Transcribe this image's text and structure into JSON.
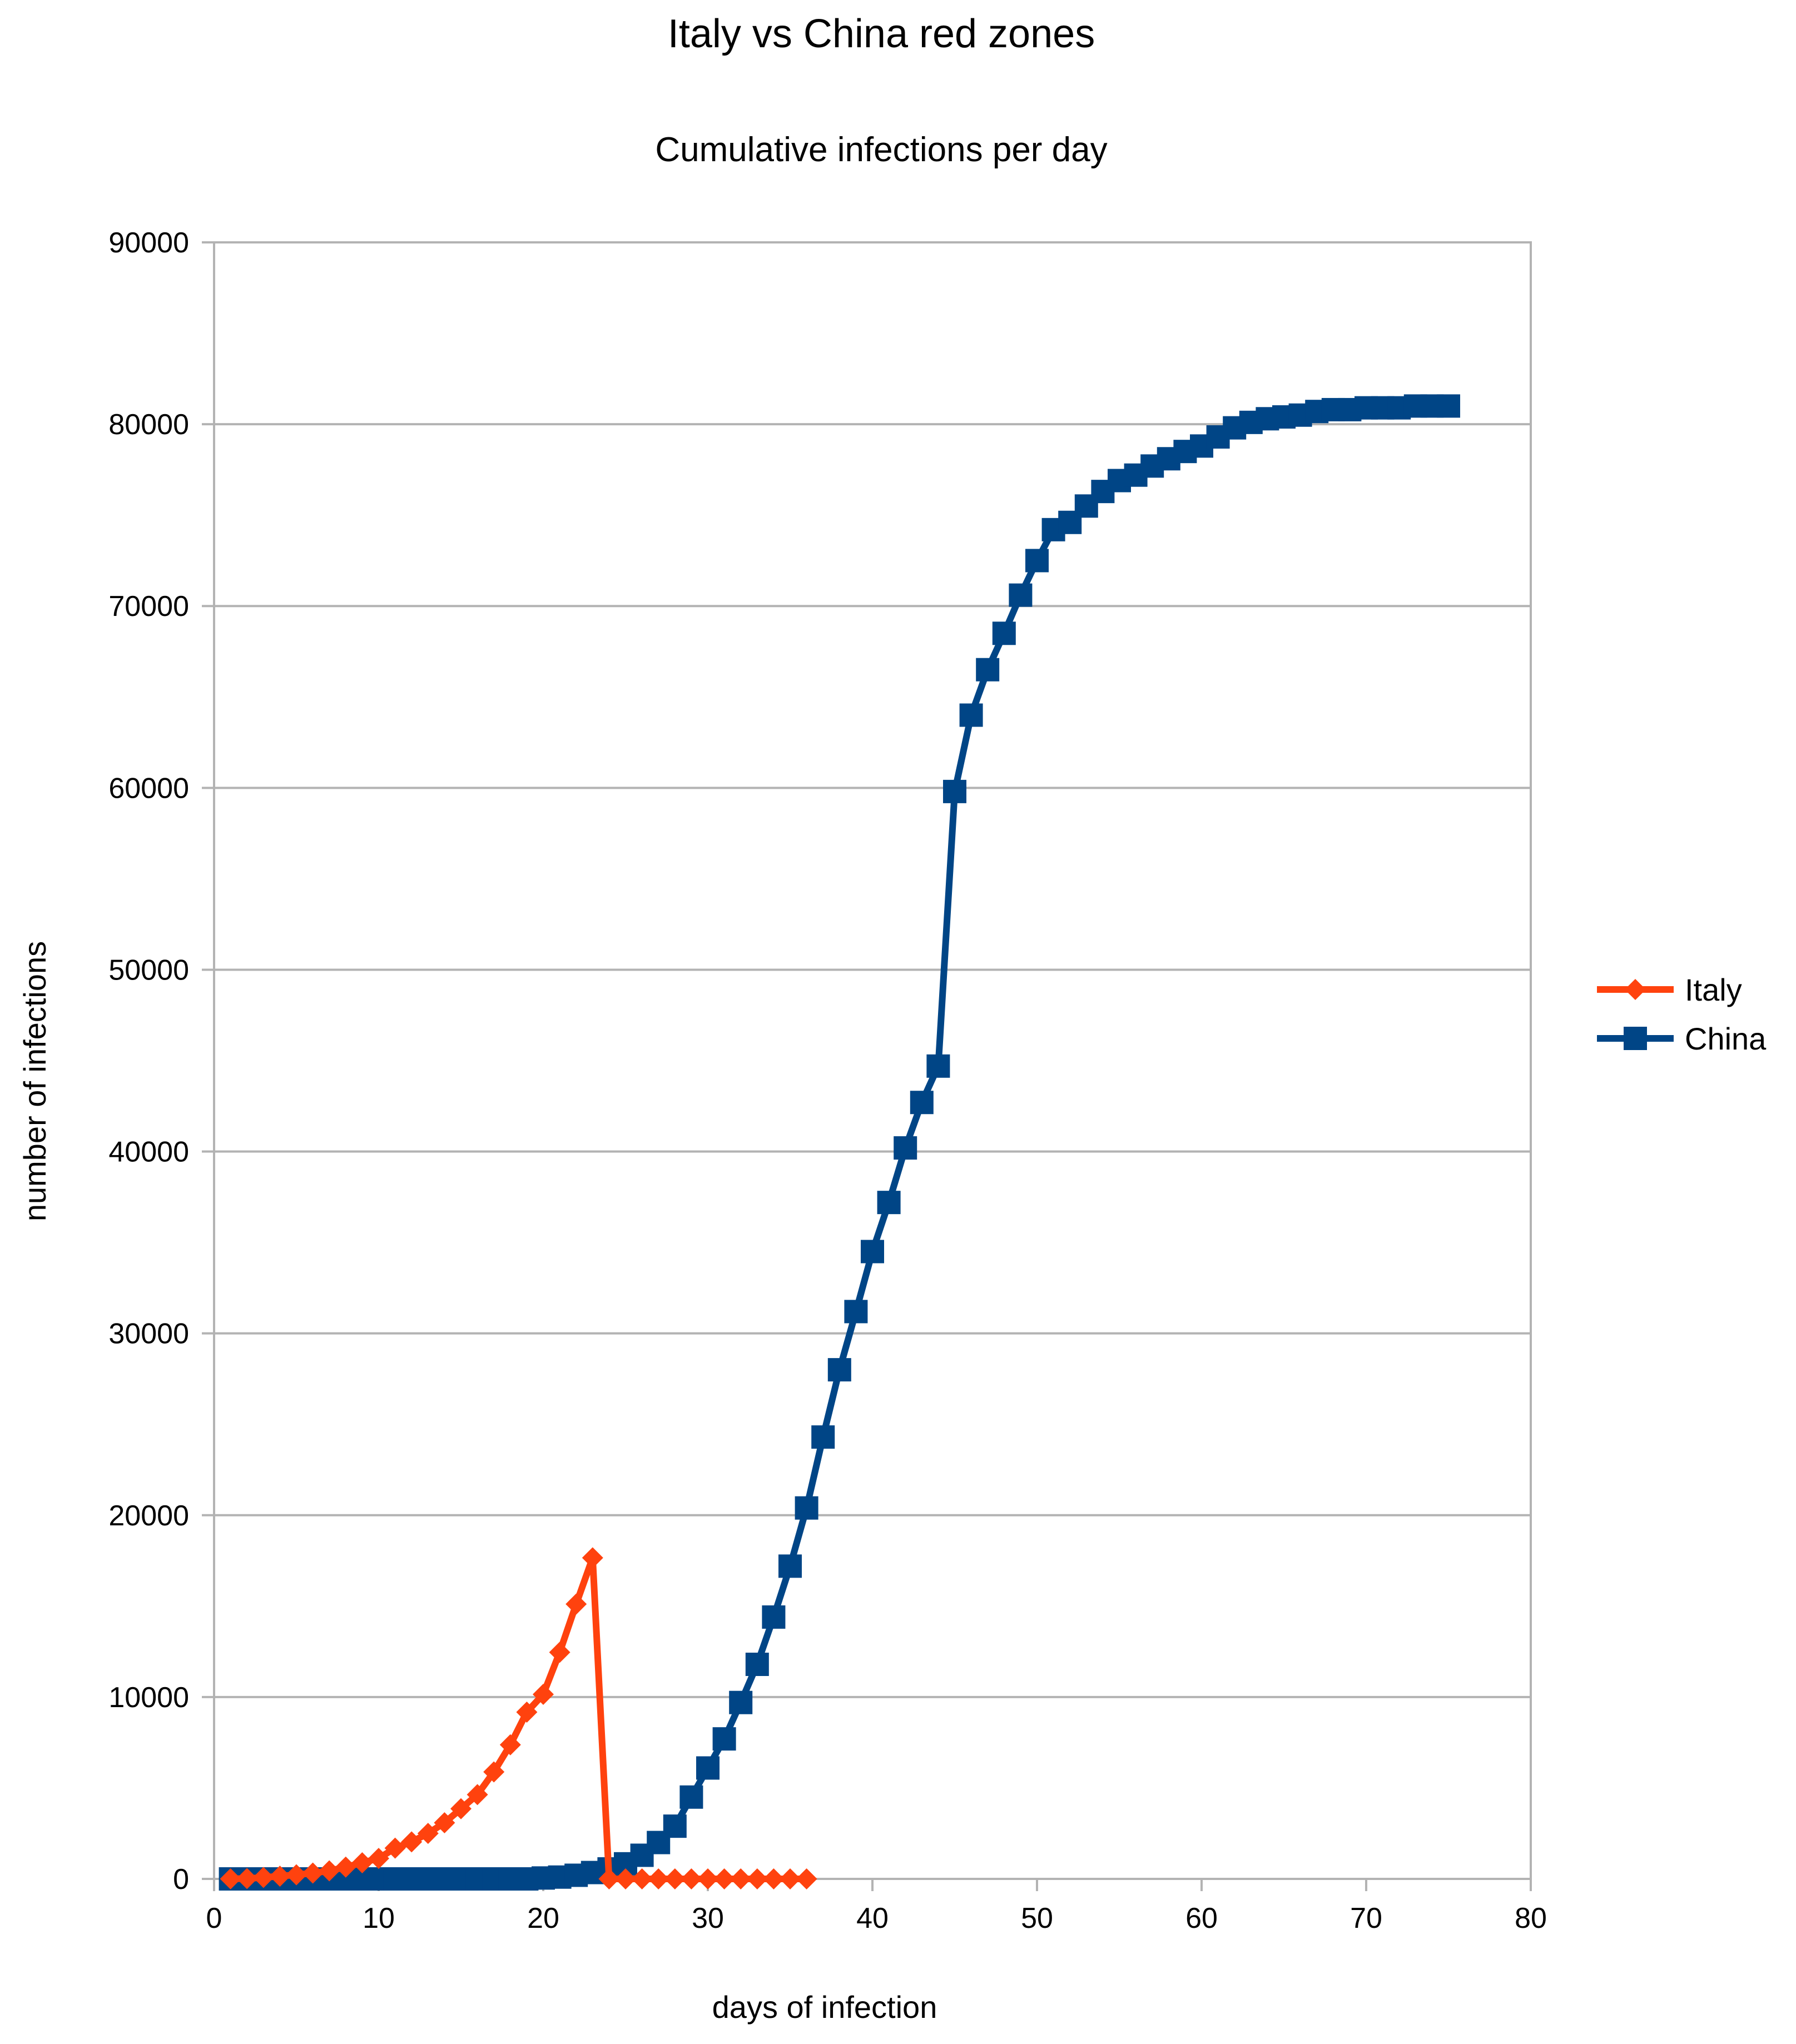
{
  "chart_data": {
    "type": "line",
    "title": "Italy vs China red zones",
    "subtitle": "Cumulative infections per day",
    "xlabel": "days of infection",
    "ylabel": "number of infections",
    "xlim": [
      0,
      80
    ],
    "ylim": [
      0,
      90000
    ],
    "xticks": [
      "0",
      "10",
      "20",
      "30",
      "40",
      "50",
      "60",
      "70",
      "80"
    ],
    "yticks": [
      "0",
      "10000",
      "20000",
      "30000",
      "40000",
      "50000",
      "60000",
      "70000",
      "80000",
      "90000"
    ],
    "grid": "horizontal",
    "legend_position": "right",
    "colors": {
      "italy": "#ff420e",
      "china": "#004586",
      "grid": "#b3b3b3",
      "axis": "#b3b3b3"
    },
    "series": [
      {
        "name": "Italy",
        "marker": "diamond",
        "x": [
          1,
          2,
          3,
          4,
          5,
          6,
          7,
          8,
          9,
          10,
          11,
          12,
          13,
          14,
          15,
          16,
          17,
          18,
          19,
          20,
          21,
          22,
          23,
          24,
          25,
          26,
          27,
          28,
          29,
          30,
          31,
          32,
          33,
          34,
          35,
          36
        ],
        "values": [
          3,
          20,
          79,
          150,
          227,
          320,
          445,
          650,
          888,
          1128,
          1694,
          2036,
          2502,
          3089,
          3858,
          4636,
          5883,
          7375,
          9172,
          10149,
          12462,
          15113,
          17660,
          0,
          0,
          0,
          0,
          0,
          0,
          0,
          0,
          0,
          0,
          0,
          0,
          0
        ]
      },
      {
        "name": "China",
        "marker": "square",
        "x": [
          1,
          2,
          3,
          4,
          5,
          6,
          7,
          8,
          9,
          10,
          11,
          12,
          13,
          14,
          15,
          16,
          17,
          18,
          19,
          20,
          21,
          22,
          23,
          24,
          25,
          26,
          27,
          28,
          29,
          30,
          31,
          32,
          33,
          34,
          35,
          36,
          37,
          38,
          39,
          40,
          41,
          42,
          43,
          44,
          45,
          46,
          47,
          48,
          49,
          50,
          51,
          52,
          53,
          54,
          55,
          56,
          57,
          58,
          59,
          60,
          61,
          62,
          63,
          64,
          65,
          66,
          67,
          68,
          69,
          70,
          71,
          72,
          73,
          74,
          75
        ],
        "values": [
          0,
          0,
          0,
          0,
          0,
          0,
          0,
          0,
          0,
          0,
          0,
          0,
          0,
          0,
          0,
          0,
          0,
          0,
          0,
          50,
          100,
          200,
          350,
          550,
          830,
          1300,
          2000,
          2900,
          4500,
          6100,
          7700,
          9700,
          11800,
          14400,
          17200,
          20400,
          24300,
          28000,
          31200,
          34500,
          37200,
          40200,
          42700,
          44700,
          59800,
          64000,
          66500,
          68500,
          70600,
          72500,
          74200,
          74600,
          75500,
          76300,
          76900,
          77200,
          77700,
          78100,
          78500,
          78800,
          79300,
          79800,
          80100,
          80300,
          80400,
          80500,
          80700,
          80800,
          80800,
          80900,
          80900,
          80900,
          81000,
          81000,
          81000
        ]
      }
    ]
  }
}
